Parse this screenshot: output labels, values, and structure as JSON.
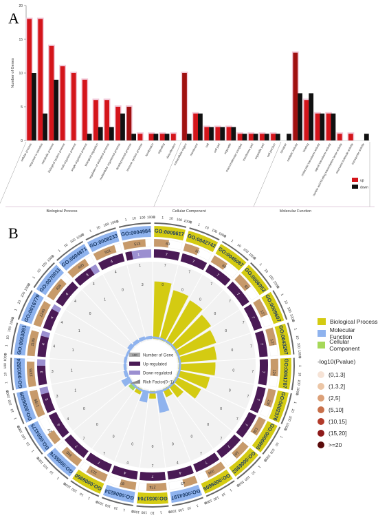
{
  "figure": {
    "panel_a_label": "A",
    "panel_b_label": "B"
  },
  "chart_data": [
    {
      "type": "bar",
      "panel": "A",
      "ylabel": "Number of Genes",
      "ylim": [
        0,
        20
      ],
      "yticks": [
        0,
        5,
        10,
        15,
        20
      ],
      "legend": [
        {
          "name": "up",
          "color": "#d4151b"
        },
        {
          "name": "down",
          "color": "#111111"
        }
      ],
      "legend_position": "right",
      "colors": {
        "up": "#d4151b",
        "down": "#111111",
        "shadow": "#f2c8d8",
        "dark_red": "#a01010"
      },
      "groups": [
        {
          "name": "Biological Process",
          "start": 0,
          "end": 13
        },
        {
          "name": "Cellular Component",
          "start": 14,
          "end": 22
        },
        {
          "name": "Molecular Function",
          "start": 23,
          "end": 30
        }
      ],
      "categories": [
        "cellular process",
        "response to stimulus",
        "metabolic process",
        "biological system process",
        "multi-organism process",
        "single-organism process",
        "biological regulation",
        "regulation of biological process",
        "multicellular organismal process",
        "developmental process",
        "immune system process",
        "localization",
        "signaling",
        "detoxification",
        "extracellular region",
        "membrane",
        "cell",
        "cell part",
        "organelle",
        "macromolecular complex",
        "membrane part",
        "organelle part",
        "cell junction",
        "synapse",
        "catalytic activity",
        "binding",
        "molecular transducer activity",
        "signal transducer activity",
        "nucleic acid binding transcription factor activity",
        "structural molecule activity",
        "transporter activity"
      ],
      "series": [
        {
          "name": "up",
          "values": [
            18,
            18,
            14,
            11,
            10,
            9,
            6,
            6,
            5,
            5,
            1,
            1,
            1,
            1,
            10,
            4,
            2,
            2,
            2,
            1,
            1,
            1,
            1,
            0,
            13,
            6,
            4,
            4,
            1,
            1,
            0
          ]
        },
        {
          "name": "down",
          "values": [
            10,
            4,
            9,
            0,
            0,
            1,
            2,
            2,
            4,
            1,
            0,
            1,
            1,
            0,
            1,
            4,
            2,
            2,
            2,
            1,
            1,
            1,
            1,
            1,
            7,
            7,
            4,
            4,
            0,
            0,
            1
          ]
        }
      ]
    },
    {
      "type": "circular",
      "panel": "B",
      "terms": [
        {
          "id": "GO:0009617",
          "category": "Biological Process",
          "background": 60,
          "up": 7,
          "down": 0,
          "rich_factor": 0.78
        },
        {
          "id": "GO:0042742",
          "category": "Biological Process",
          "background": 60,
          "up": 7,
          "down": 0,
          "rich_factor": 0.7
        },
        {
          "id": "GO:0045087",
          "category": "Biological Process",
          "background": 68,
          "up": 7,
          "down": 0,
          "rich_factor": 0.66
        },
        {
          "id": "GO:0006952",
          "category": "Biological Process",
          "background": 89,
          "up": 7,
          "down": 0,
          "rich_factor": 0.6
        },
        {
          "id": "GO:0009607",
          "category": "Biological Process",
          "background": 127,
          "up": 7,
          "down": 0,
          "rich_factor": 0.56
        },
        {
          "id": "GO:0043207",
          "category": "Biological Process",
          "background": 127,
          "up": 7,
          "down": 0,
          "rich_factor": 0.52
        },
        {
          "id": "GO:0051707",
          "category": "Biological Process",
          "background": 124,
          "up": 7,
          "down": 0,
          "rich_factor": 0.5
        },
        {
          "id": "GO:0002376",
          "category": "Biological Process",
          "background": 136,
          "up": 7,
          "down": 0,
          "rich_factor": 0.44
        },
        {
          "id": "GO:0006955",
          "category": "Biological Process",
          "background": 136,
          "up": 7,
          "down": 0,
          "rich_factor": 0.38
        },
        {
          "id": "GO:0006952",
          "category": "Biological Process",
          "background": 101,
          "up": 7,
          "down": 0,
          "rich_factor": 0.2
        },
        {
          "id": "GO:0009605",
          "category": "Biological Process",
          "background": 206,
          "up": 7,
          "down": 0,
          "rich_factor": 0.12
        },
        {
          "id": "GO:0004197",
          "category": "Molecular Function",
          "background": 43,
          "up": 4,
          "down": 0,
          "rich_factor": 0.3
        },
        {
          "id": "GO:0051704",
          "category": "Biological Process",
          "background": 274,
          "up": 7,
          "down": 0,
          "rich_factor": 0.1
        },
        {
          "id": "GO:0008234",
          "category": "Molecular Function",
          "background": 87,
          "up": 4,
          "down": 0,
          "rich_factor": 0.16
        },
        {
          "id": "GO:0006950",
          "category": "Biological Process",
          "background": 323,
          "up": 7,
          "down": 0,
          "rich_factor": 0.08
        },
        {
          "id": "GO:0005576",
          "category": "Cellular Component",
          "background": 340,
          "up": 7,
          "down": 0,
          "rich_factor": 0.08
        },
        {
          "id": "GO:0004175",
          "category": "Molecular Function",
          "background": 27,
          "up": 4,
          "down": 0,
          "rich_factor": 0.12
        },
        {
          "id": "GO:0005509",
          "category": "Molecular Function",
          "background": 1785,
          "up": 3,
          "down": 1,
          "rich_factor": 0.05
        },
        {
          "id": "GO:0003824",
          "category": "Molecular Function",
          "background": 1135,
          "up": 3,
          "down": 1,
          "rich_factor": 0.04
        },
        {
          "id": "GO:0003091",
          "category": "Molecular Function",
          "background": 1185,
          "up": 4,
          "down": 1,
          "rich_factor": 0.04
        },
        {
          "id": "GO:0016779",
          "category": "Molecular Function",
          "background": 1240,
          "up": 4,
          "down": 1,
          "rich_factor": 0.03
        },
        {
          "id": "GO:0070011",
          "category": "Molecular Function",
          "background": 455,
          "up": 4,
          "down": 0,
          "rich_factor": 0.06
        },
        {
          "id": "GO:0004871",
          "category": "Molecular Function",
          "background": 403,
          "up": 3,
          "down": 1,
          "rich_factor": 0.05
        },
        {
          "id": "GO:0008233",
          "category": "Molecular Function",
          "background": 501,
          "up": 4,
          "down": 0,
          "rich_factor": 0.05
        },
        {
          "id": "GO:0004984",
          "category": "Molecular Function",
          "background": 513,
          "up": 1,
          "down": 3,
          "rich_factor": 0.04
        }
      ],
      "scale_labels": [
        "0",
        "1",
        "10",
        "100",
        "1000"
      ],
      "legend_categories": [
        {
          "name": "Biological Process",
          "color": "#d4cb12"
        },
        {
          "name": "Molecular Function",
          "color": "#8fb3ee"
        },
        {
          "name": "Cellular Component",
          "color": "#a6d85a"
        }
      ],
      "legend_tracks": [
        {
          "name": "Number of Gene",
          "color": "#a9a9a9"
        },
        {
          "name": "Up-regulated",
          "color": "#4a1a55"
        },
        {
          "name": "Down-regulated",
          "color": "#9b8fd0"
        },
        {
          "name": "Rich Factor(0~1)",
          "color": "#8a8a8a"
        }
      ],
      "legend_center_sample": "100",
      "pvalue_legend_title": "-log10(Pvalue)",
      "pvalue_bins": [
        {
          "label": "(0,1.3]",
          "color": "#f6e3d6"
        },
        {
          "label": "(1.3,2]",
          "color": "#ecc6a6"
        },
        {
          "label": "(2,5]",
          "color": "#dca078"
        },
        {
          "label": "(5,10]",
          "color": "#c8704a"
        },
        {
          "label": "(10,15]",
          "color": "#b23a2a"
        },
        {
          "label": "(15,20]",
          "color": "#8e1a1a"
        },
        {
          "label": ">=20",
          "color": "#5a0a0a"
        }
      ]
    }
  ]
}
